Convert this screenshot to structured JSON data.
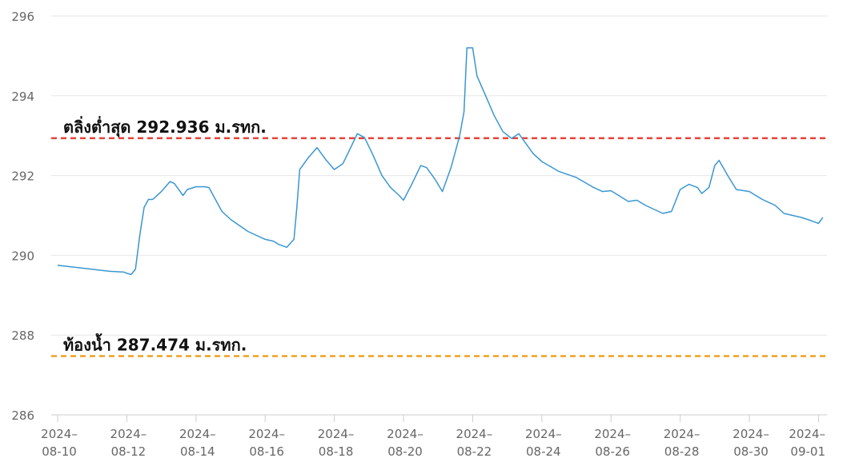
{
  "chart_data": {
    "type": "line",
    "title": "",
    "xlabel": "",
    "ylabel": "",
    "x_range": [
      "2024-08-10",
      "2024-09-01"
    ],
    "ylim": [
      286,
      296
    ],
    "grid": true,
    "y_ticks": [
      "286",
      "288",
      "290",
      "292",
      "294",
      "296"
    ],
    "x_ticks": [
      {
        "date": "2024-08-10",
        "line1": "2024–",
        "line2": "08-10"
      },
      {
        "date": "2024-08-12",
        "line1": "2024–",
        "line2": "08-12"
      },
      {
        "date": "2024-08-14",
        "line1": "2024–",
        "line2": "08-14"
      },
      {
        "date": "2024-08-16",
        "line1": "2024–",
        "line2": "08-16"
      },
      {
        "date": "2024-08-18",
        "line1": "2024–",
        "line2": "08-18"
      },
      {
        "date": "2024-08-20",
        "line1": "2024–",
        "line2": "08-20"
      },
      {
        "date": "2024-08-22",
        "line1": "2024–",
        "line2": "08-22"
      },
      {
        "date": "2024-08-24",
        "line1": "2024–",
        "line2": "08-24"
      },
      {
        "date": "2024-08-26",
        "line1": "2024–",
        "line2": "08-26"
      },
      {
        "date": "2024-08-28",
        "line1": "2024–",
        "line2": "08-28"
      },
      {
        "date": "2024-08-30",
        "line1": "2024–",
        "line2": "08-30"
      },
      {
        "date": "2024-09-01",
        "line1": "2024–",
        "line2": "09-01"
      }
    ],
    "series": [
      {
        "color": "#3a96d2",
        "points": [
          [
            "2024-08-10T00:00",
            289.75
          ],
          [
            "2024-08-10T12:00",
            289.7
          ],
          [
            "2024-08-11T00:00",
            289.65
          ],
          [
            "2024-08-11T12:00",
            289.6
          ],
          [
            "2024-08-11T22:00",
            289.58
          ],
          [
            "2024-08-12T00:00",
            289.55
          ],
          [
            "2024-08-12T03:00",
            289.52
          ],
          [
            "2024-08-12T06:00",
            289.65
          ],
          [
            "2024-08-12T09:00",
            290.5
          ],
          [
            "2024-08-12T12:00",
            291.2
          ],
          [
            "2024-08-12T15:00",
            291.4
          ],
          [
            "2024-08-12T18:00",
            291.4
          ],
          [
            "2024-08-13T00:00",
            291.6
          ],
          [
            "2024-08-13T06:00",
            291.85
          ],
          [
            "2024-08-13T09:00",
            291.8
          ],
          [
            "2024-08-13T15:00",
            291.5
          ],
          [
            "2024-08-13T18:00",
            291.65
          ],
          [
            "2024-08-14T00:00",
            291.72
          ],
          [
            "2024-08-14T06:00",
            291.72
          ],
          [
            "2024-08-14T09:00",
            291.7
          ],
          [
            "2024-08-14T12:00",
            291.5
          ],
          [
            "2024-08-14T18:00",
            291.1
          ],
          [
            "2024-08-15T00:00",
            290.9
          ],
          [
            "2024-08-15T12:00",
            290.6
          ],
          [
            "2024-08-16T00:00",
            290.4
          ],
          [
            "2024-08-16T06:00",
            290.35
          ],
          [
            "2024-08-16T09:00",
            290.28
          ],
          [
            "2024-08-16T15:00",
            290.2
          ],
          [
            "2024-08-16T20:00",
            290.4
          ],
          [
            "2024-08-16T22:00",
            291.2
          ],
          [
            "2024-08-17T00:00",
            292.15
          ],
          [
            "2024-08-17T06:00",
            292.45
          ],
          [
            "2024-08-17T12:00",
            292.7
          ],
          [
            "2024-08-17T18:00",
            292.4
          ],
          [
            "2024-08-18T00:00",
            292.15
          ],
          [
            "2024-08-18T06:00",
            292.3
          ],
          [
            "2024-08-18T12:00",
            292.75
          ],
          [
            "2024-08-18T16:00",
            293.05
          ],
          [
            "2024-08-18T21:00",
            292.95
          ],
          [
            "2024-08-19T03:00",
            292.5
          ],
          [
            "2024-08-19T09:00",
            292.0
          ],
          [
            "2024-08-19T15:00",
            291.7
          ],
          [
            "2024-08-19T21:00",
            291.5
          ],
          [
            "2024-08-20T00:00",
            291.38
          ],
          [
            "2024-08-20T06:00",
            291.8
          ],
          [
            "2024-08-20T12:00",
            292.25
          ],
          [
            "2024-08-20T16:00",
            292.2
          ],
          [
            "2024-08-20T22:00",
            291.9
          ],
          [
            "2024-08-21T03:00",
            291.6
          ],
          [
            "2024-08-21T09:00",
            292.2
          ],
          [
            "2024-08-21T15:00",
            293.0
          ],
          [
            "2024-08-21T18:00",
            293.6
          ],
          [
            "2024-08-21T20:00",
            295.2
          ],
          [
            "2024-08-22T00:00",
            295.2
          ],
          [
            "2024-08-22T03:00",
            294.5
          ],
          [
            "2024-08-22T09:00",
            294.0
          ],
          [
            "2024-08-22T15:00",
            293.5
          ],
          [
            "2024-08-22T21:00",
            293.1
          ],
          [
            "2024-08-23T03:00",
            292.93
          ],
          [
            "2024-08-23T08:00",
            293.05
          ],
          [
            "2024-08-23T12:00",
            292.85
          ],
          [
            "2024-08-23T18:00",
            292.55
          ],
          [
            "2024-08-24T00:00",
            292.35
          ],
          [
            "2024-08-24T12:00",
            292.1
          ],
          [
            "2024-08-25T00:00",
            291.95
          ],
          [
            "2024-08-25T12:00",
            291.7
          ],
          [
            "2024-08-25T18:00",
            291.6
          ],
          [
            "2024-08-26T00:00",
            291.62
          ],
          [
            "2024-08-26T12:00",
            291.35
          ],
          [
            "2024-08-26T18:00",
            291.38
          ],
          [
            "2024-08-27T00:00",
            291.25
          ],
          [
            "2024-08-27T12:00",
            291.05
          ],
          [
            "2024-08-27T18:00",
            291.1
          ],
          [
            "2024-08-28T00:00",
            291.65
          ],
          [
            "2024-08-28T06:00",
            291.78
          ],
          [
            "2024-08-28T12:00",
            291.7
          ],
          [
            "2024-08-28T15:00",
            291.55
          ],
          [
            "2024-08-28T20:00",
            291.7
          ],
          [
            "2024-08-29T00:00",
            292.25
          ],
          [
            "2024-08-29T03:00",
            292.38
          ],
          [
            "2024-08-29T09:00",
            292.0
          ],
          [
            "2024-08-29T15:00",
            291.65
          ],
          [
            "2024-08-30T00:00",
            291.6
          ],
          [
            "2024-08-30T09:00",
            291.4
          ],
          [
            "2024-08-30T18:00",
            291.25
          ],
          [
            "2024-08-31T00:00",
            291.05
          ],
          [
            "2024-08-31T12:00",
            290.95
          ],
          [
            "2024-08-31T18:00",
            290.88
          ],
          [
            "2024-09-01T00:00",
            290.8
          ],
          [
            "2024-09-01T03:00",
            290.95
          ]
        ]
      }
    ],
    "reference_lines": [
      {
        "label": "ตลิ่งต่ำสุด 292.936 ม.รทก.",
        "value": 292.936,
        "color": "#e8413a"
      },
      {
        "label": "ท้องน้ำ 287.474 ม.รทก.",
        "value": 287.474,
        "color": "#f0a01e"
      }
    ]
  }
}
